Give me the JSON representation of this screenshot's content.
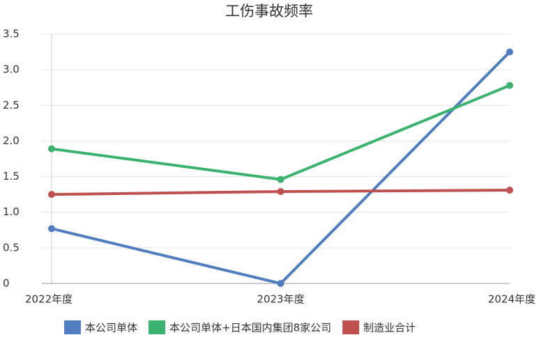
{
  "chart_data": {
    "type": "line",
    "title": "工伤事故频率",
    "categories": [
      "2022年度",
      "2023年度",
      "2024年度"
    ],
    "series": [
      {
        "name": "本公司单体",
        "color": "#4f7dbd",
        "values": [
          0.77,
          0,
          3.25
        ]
      },
      {
        "name": "本公司单体+日本国内集团8家公司",
        "color": "#3bb36f",
        "values": [
          1.89,
          1.46,
          2.78
        ]
      },
      {
        "name": "制造业合计",
        "color": "#c0504d",
        "values": [
          1.25,
          1.29,
          1.31
        ]
      }
    ],
    "ylim": [
      0,
      3.5
    ],
    "yticks": [
      0,
      0.5,
      {
        "value": 1,
        "label": "1.0"
      },
      1.5,
      {
        "value": 2,
        "label": "2.0"
      },
      2.5,
      {
        "value": 3,
        "label": "3.0"
      },
      3.5
    ],
    "grid": true
  }
}
